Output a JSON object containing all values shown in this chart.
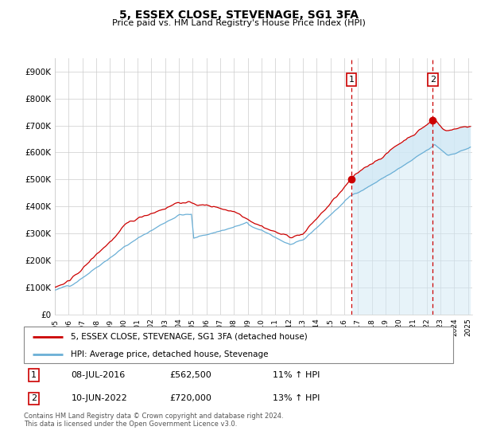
{
  "title": "5, ESSEX CLOSE, STEVENAGE, SG1 3FA",
  "subtitle": "Price paid vs. HM Land Registry's House Price Index (HPI)",
  "ylabel_ticks": [
    "£0",
    "£100K",
    "£200K",
    "£300K",
    "£400K",
    "£500K",
    "£600K",
    "£700K",
    "£800K",
    "£900K"
  ],
  "ytick_values": [
    0,
    100000,
    200000,
    300000,
    400000,
    500000,
    600000,
    700000,
    800000,
    900000
  ],
  "ylim": [
    0,
    950000
  ],
  "xlim_start": 1995.0,
  "xlim_end": 2025.3,
  "hpi_color": "#6aafd6",
  "price_color": "#cc0000",
  "vline_color": "#cc0000",
  "fill_color": "#d0e8f5",
  "legend_label_price": "5, ESSEX CLOSE, STEVENAGE, SG1 3FA (detached house)",
  "legend_label_hpi": "HPI: Average price, detached house, Stevenage",
  "transaction1_x": 2016.52,
  "transaction1_y": 562500,
  "transaction1_label": "1",
  "transaction2_x": 2022.44,
  "transaction2_y": 720000,
  "transaction2_label": "2",
  "table_row1": [
    "1",
    "08-JUL-2016",
    "£562,500",
    "11% ↑ HPI"
  ],
  "table_row2": [
    "2",
    "10-JUN-2022",
    "£720,000",
    "13% ↑ HPI"
  ],
  "footnote": "Contains HM Land Registry data © Crown copyright and database right 2024.\nThis data is licensed under the Open Government Licence v3.0.",
  "xtick_years": [
    1995,
    1996,
    1997,
    1998,
    1999,
    2000,
    2001,
    2002,
    2003,
    2004,
    2005,
    2006,
    2007,
    2008,
    2009,
    2010,
    2011,
    2012,
    2013,
    2014,
    2015,
    2016,
    2017,
    2018,
    2019,
    2020,
    2021,
    2022,
    2023,
    2024,
    2025
  ]
}
